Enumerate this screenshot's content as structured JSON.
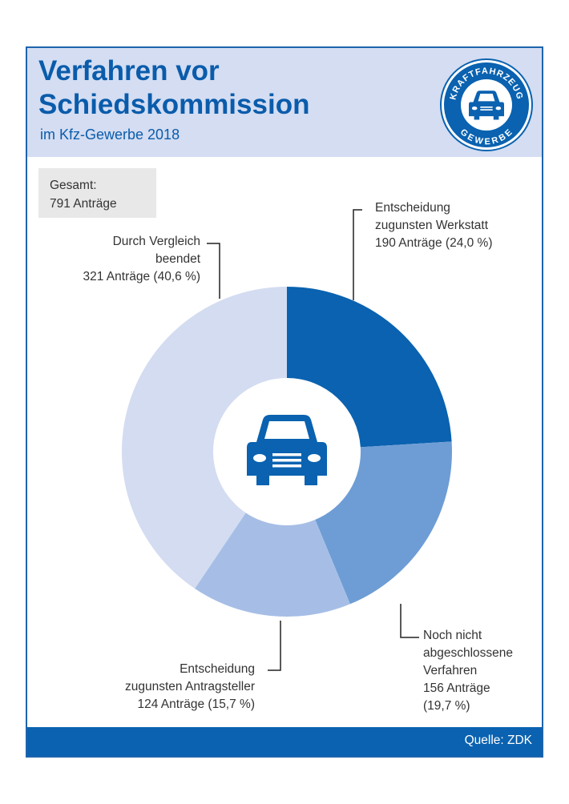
{
  "header": {
    "title": "Verfahren vor\nSchiedskommission",
    "subtitle": "im Kfz-Gewerbe 2018"
  },
  "badge": {
    "top_text": "KRAFTFAHRZEUG",
    "bottom_text": "GEWERBE",
    "icon": "car-icon"
  },
  "total": {
    "label": "Gesamt:",
    "value": "791 Anträge"
  },
  "footer": {
    "source": "Quelle: ZDK"
  },
  "center_icon": "car-icon",
  "colors": {
    "brand": "#0a62b0",
    "header_bg": "#d4ddf2",
    "slice_werkstatt": "#0a62b0",
    "slice_offen": "#6e9dd5",
    "slice_antragsteller": "#a6bee6",
    "slice_vergleich": "#d3dcf1"
  },
  "chart_data": {
    "type": "pie",
    "style": "donut",
    "total": 791,
    "unit": "Anträge",
    "slices": [
      {
        "key": "werkstatt",
        "label": [
          "Entscheidung",
          "zugunsten Werkstatt",
          "190 Anträge (24,0 %)"
        ],
        "value": 190,
        "percent": 24.0,
        "color": "#0a62b0"
      },
      {
        "key": "offen",
        "label": [
          "Noch nicht",
          "abgeschlossene",
          "Verfahren",
          "156 Anträge",
          "(19,7 %)"
        ],
        "value": 156,
        "percent": 19.7,
        "color": "#6e9dd5"
      },
      {
        "key": "antragsteller",
        "label": [
          "Entscheidung",
          "zugunsten Antragsteller",
          "124 Anträge (15,7 %)"
        ],
        "value": 124,
        "percent": 15.7,
        "color": "#a6bee6"
      },
      {
        "key": "vergleich",
        "label": [
          "Durch Vergleich",
          "beendet",
          "321 Anträge (40,6 %)"
        ],
        "value": 321,
        "percent": 40.6,
        "color": "#d3dcf1"
      }
    ]
  }
}
